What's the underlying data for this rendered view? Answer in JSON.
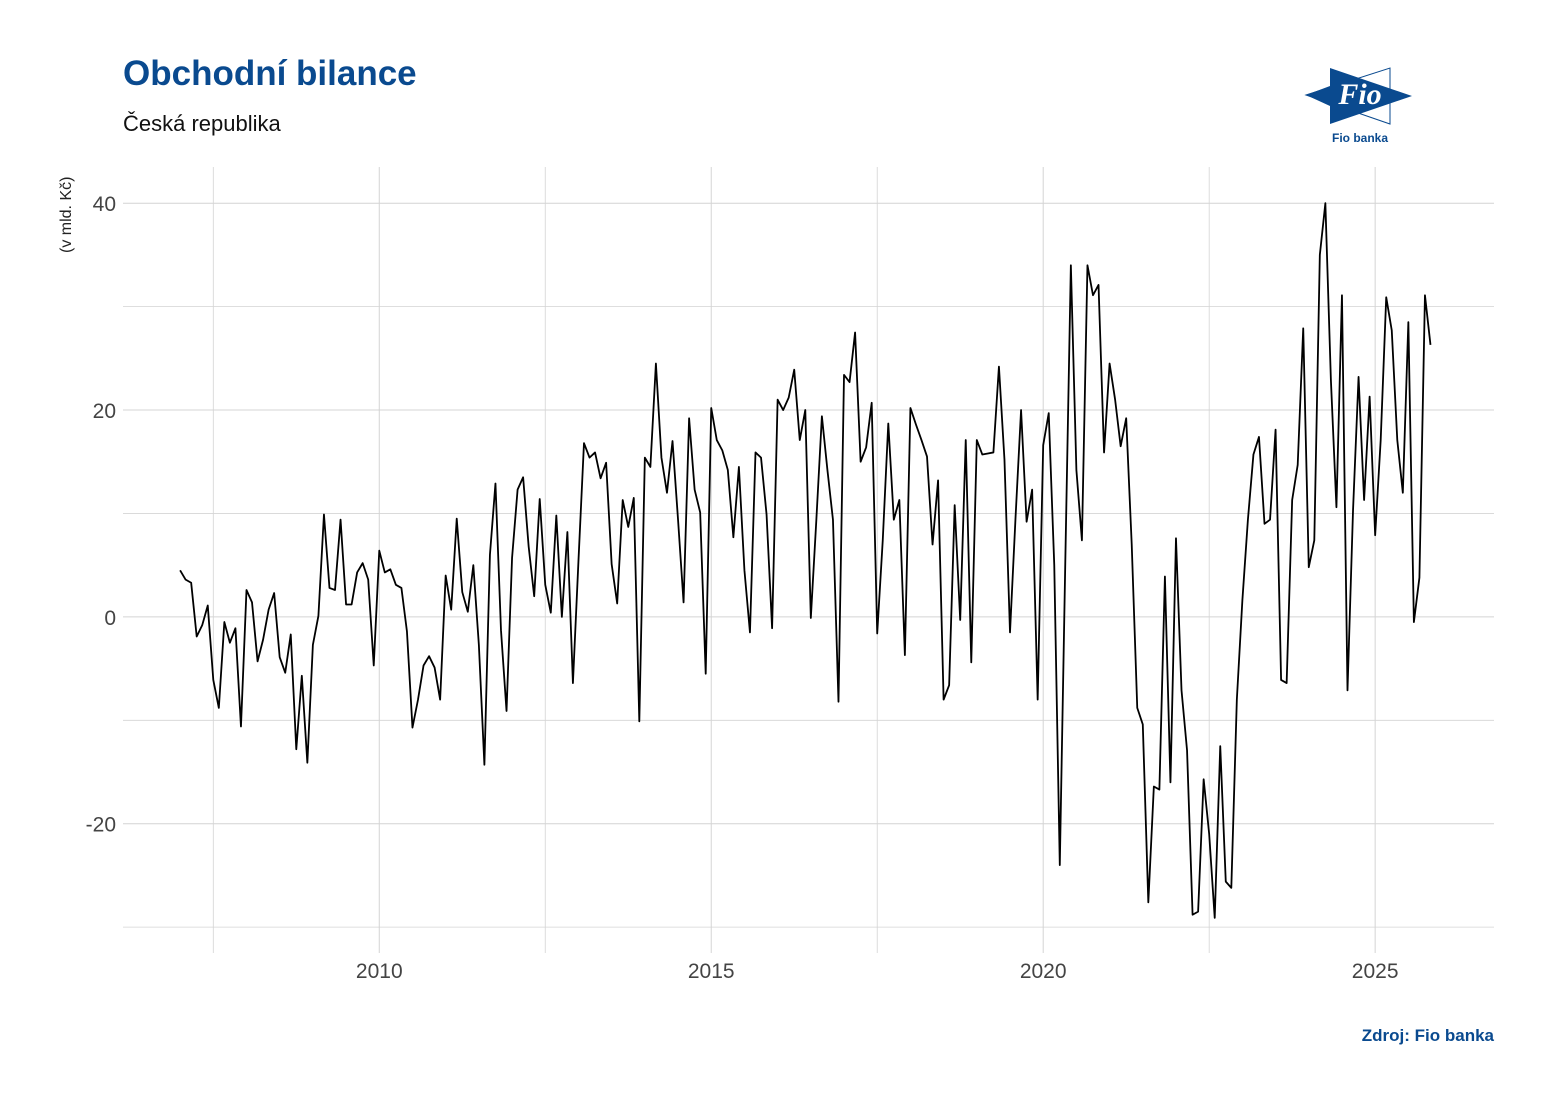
{
  "chart_data": {
    "type": "line",
    "title": "Obchodní bilance",
    "subtitle": "Česká republika",
    "ylabel": "(v mld. Kč)",
    "xlabel": "",
    "source": "Zdroj: Fio banka",
    "ylim": [
      -32.5,
      43.5
    ],
    "xlim": [
      2006.14,
      2026.79
    ],
    "grid": true,
    "y_ticks": [
      -20,
      0,
      20,
      40
    ],
    "x_ticks": [
      2010,
      2015,
      2020,
      2025
    ],
    "line_color": "#000000",
    "start_year": 2007,
    "values": [
      4.5,
      3.6,
      3.3,
      -1.9,
      -0.8,
      1.1,
      -6.1,
      -8.8,
      -0.5,
      -2.5,
      -1.1,
      -10.6,
      2.6,
      1.4,
      -4.3,
      -2.2,
      0.7,
      2.3,
      -3.9,
      -5.4,
      -1.7,
      -12.8,
      -5.7,
      -14.1,
      -2.7,
      0.1,
      9.9,
      2.8,
      2.6,
      9.4,
      1.2,
      1.2,
      4.3,
      5.2,
      3.6,
      -4.7,
      6.4,
      4.3,
      4.6,
      3.1,
      2.8,
      -1.4,
      -10.7,
      -8,
      -4.7,
      -3.8,
      -4.9,
      -8,
      4,
      0.7,
      9.5,
      2.4,
      0.5,
      5,
      -2.7,
      -14.3,
      6,
      12.9,
      -1.3,
      -9.1,
      5.7,
      12.3,
      13.5,
      6.8,
      2,
      11.4,
      3.1,
      0.4,
      9.8,
      0,
      8.2,
      -6.4,
      5.4,
      16.8,
      15.4,
      15.9,
      13.4,
      14.9,
      5.1,
      1.3,
      11.3,
      8.7,
      11.5,
      -10.1,
      15.4,
      14.5,
      24.5,
      15.4,
      12,
      17,
      9.4,
      1.4,
      19.2,
      12.3,
      10.1,
      -5.5,
      20.2,
      17.1,
      16.1,
      14.2,
      7.7,
      14.5,
      4.5,
      -1.5,
      15.9,
      15.4,
      9.9,
      -1.1,
      21,
      20,
      21.2,
      23.9,
      17.1,
      20,
      -0.1,
      9.4,
      19.4,
      14.2,
      9.4,
      -8.2,
      23.4,
      22.7,
      27.5,
      15,
      16.4,
      20.7,
      -1.6,
      7.4,
      18.7,
      9.4,
      11.3,
      -3.7,
      20.2,
      18.6,
      17.1,
      15.5,
      7,
      13.2,
      -8,
      -6.6,
      10.8,
      -0.3,
      17.1,
      -4.4,
      17.1,
      15.7,
      15.8,
      15.9,
      24.2,
      15.2,
      -1.5,
      9.6,
      20,
      9.2,
      12.3,
      -8,
      16.6,
      19.7,
      5,
      -24,
      5.5,
      34,
      14.2,
      7.4,
      34,
      31.1,
      32.1,
      15.9,
      24.5,
      21,
      16.5,
      19.2,
      7,
      -8.8,
      -10.4,
      -27.6,
      -16.4,
      -16.7,
      3.9,
      -16,
      7.6,
      -7.1,
      -12.9,
      -28.8,
      -28.5,
      -15.7,
      -21,
      -29.1,
      -12.5,
      -25.6,
      -26.2,
      -8,
      1.6,
      9.4,
      15.7,
      17.4,
      9,
      9.4,
      18.1,
      -6.1,
      -6.4,
      11.3,
      14.7,
      27.9,
      4.8,
      7.4,
      35,
      40,
      22.9,
      10.6,
      31.1,
      -7.1,
      10.3,
      23.2,
      11.3,
      21.3,
      7.9,
      17.1,
      30.9,
      27.7,
      17.1,
      12,
      28.5,
      -0.5,
      3.8,
      31.1,
      26.3
    ]
  },
  "logo": {
    "text": "Fio",
    "caption": "Fio banka",
    "color": "#0a4a8f"
  }
}
